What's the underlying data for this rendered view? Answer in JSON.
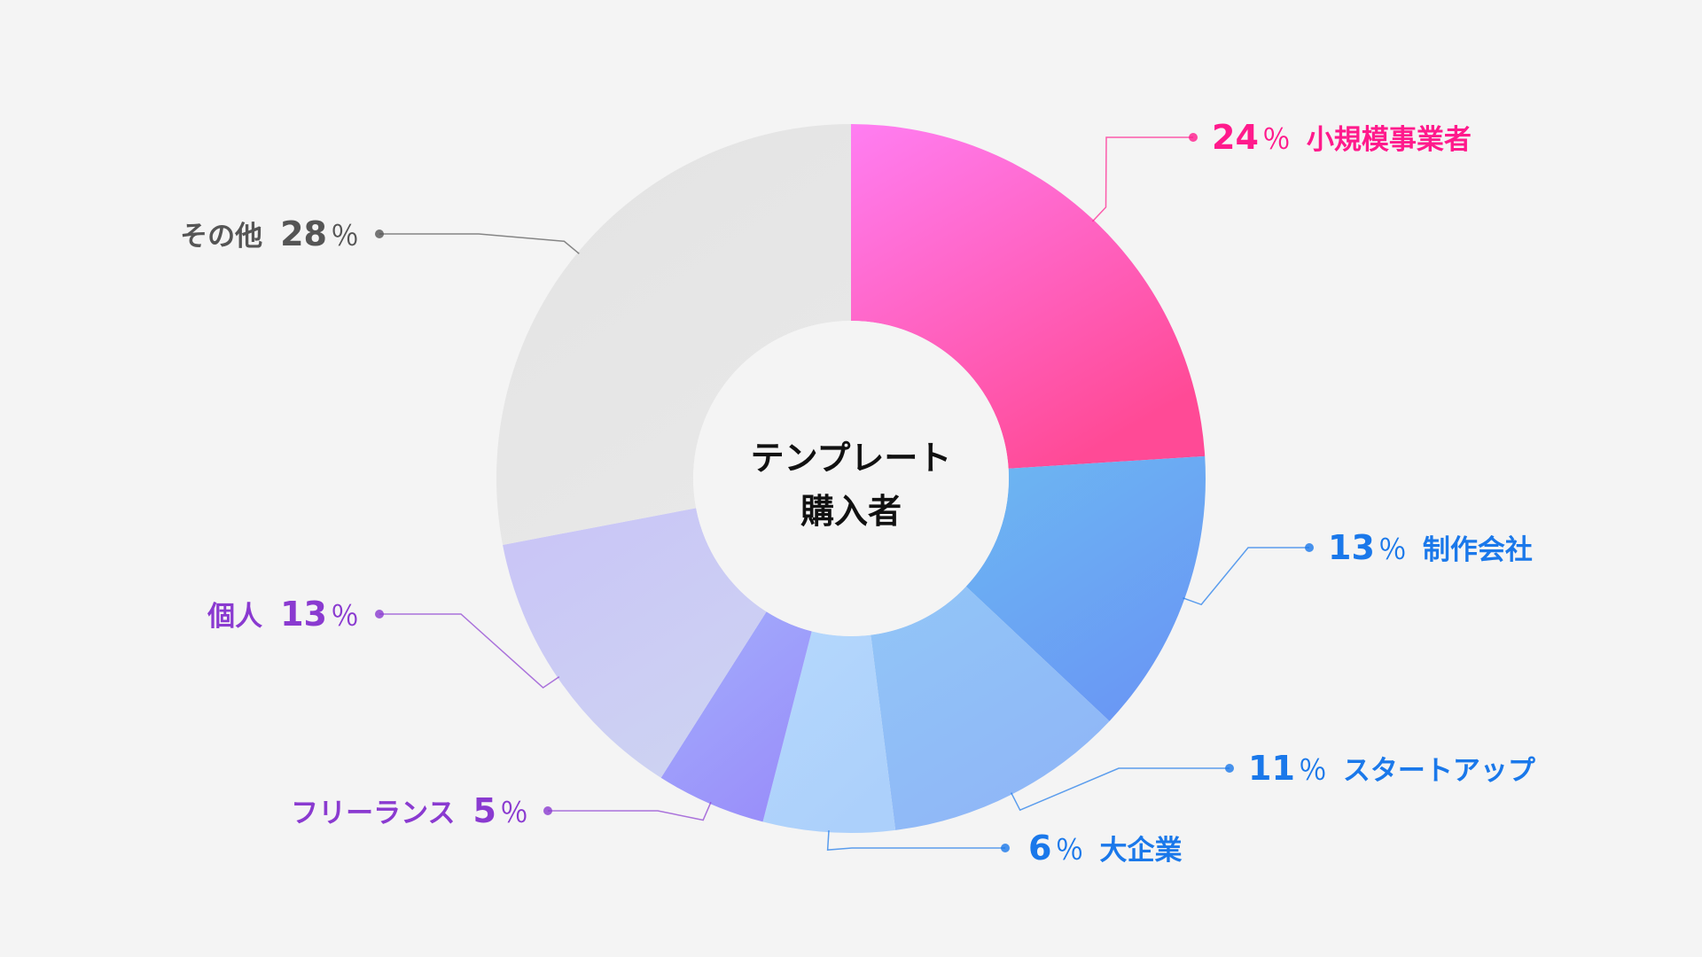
{
  "chart_data": {
    "type": "pie",
    "variant": "donut",
    "title": "",
    "center_label": [
      "テンプレート",
      "購入者"
    ],
    "unit": "％",
    "legend": "none",
    "slices": [
      {
        "label": "小規模事業者",
        "value": 24,
        "color": "#ff5fae",
        "gradient": [
          "#ff7ef2",
          "#ff4a96"
        ],
        "text_color": "#ff1a8c",
        "label_order": "value-first"
      },
      {
        "label": "制作会社",
        "value": 13,
        "color": "#6aa6f3",
        "gradient": [
          "#6cb8f2",
          "#6a98f4"
        ],
        "text_color": "#1a78ea",
        "label_order": "value-first"
      },
      {
        "label": "スタートアップ",
        "value": 11,
        "color": "#8fbcf7",
        "gradient": [
          "#92c6f7",
          "#8fb6f7"
        ],
        "text_color": "#1a78ea",
        "label_order": "value-first"
      },
      {
        "label": "大企業",
        "value": 6,
        "color": "#b3d4fb",
        "gradient": [
          "#b5d8fc",
          "#acd0fb"
        ],
        "text_color": "#1a78ea",
        "label_order": "value-first"
      },
      {
        "label": "フリーランス",
        "value": 5,
        "color": "#a9a6fb",
        "gradient": [
          "#a3aefc",
          "#9a90fa"
        ],
        "text_color": "#8a3ad0",
        "label_order": "label-first"
      },
      {
        "label": "個人",
        "value": 13,
        "color": "#c6c6f4",
        "gradient": [
          "#c9c4f7",
          "#cdd2f2"
        ],
        "text_color": "#8a3ad0",
        "label_order": "label-first"
      },
      {
        "label": "その他",
        "value": 28,
        "color": "#e5e5e5",
        "gradient": [
          "#e3e3e3",
          "#e8e8e8"
        ],
        "text_color": "#555555",
        "label_order": "label-first"
      }
    ]
  }
}
